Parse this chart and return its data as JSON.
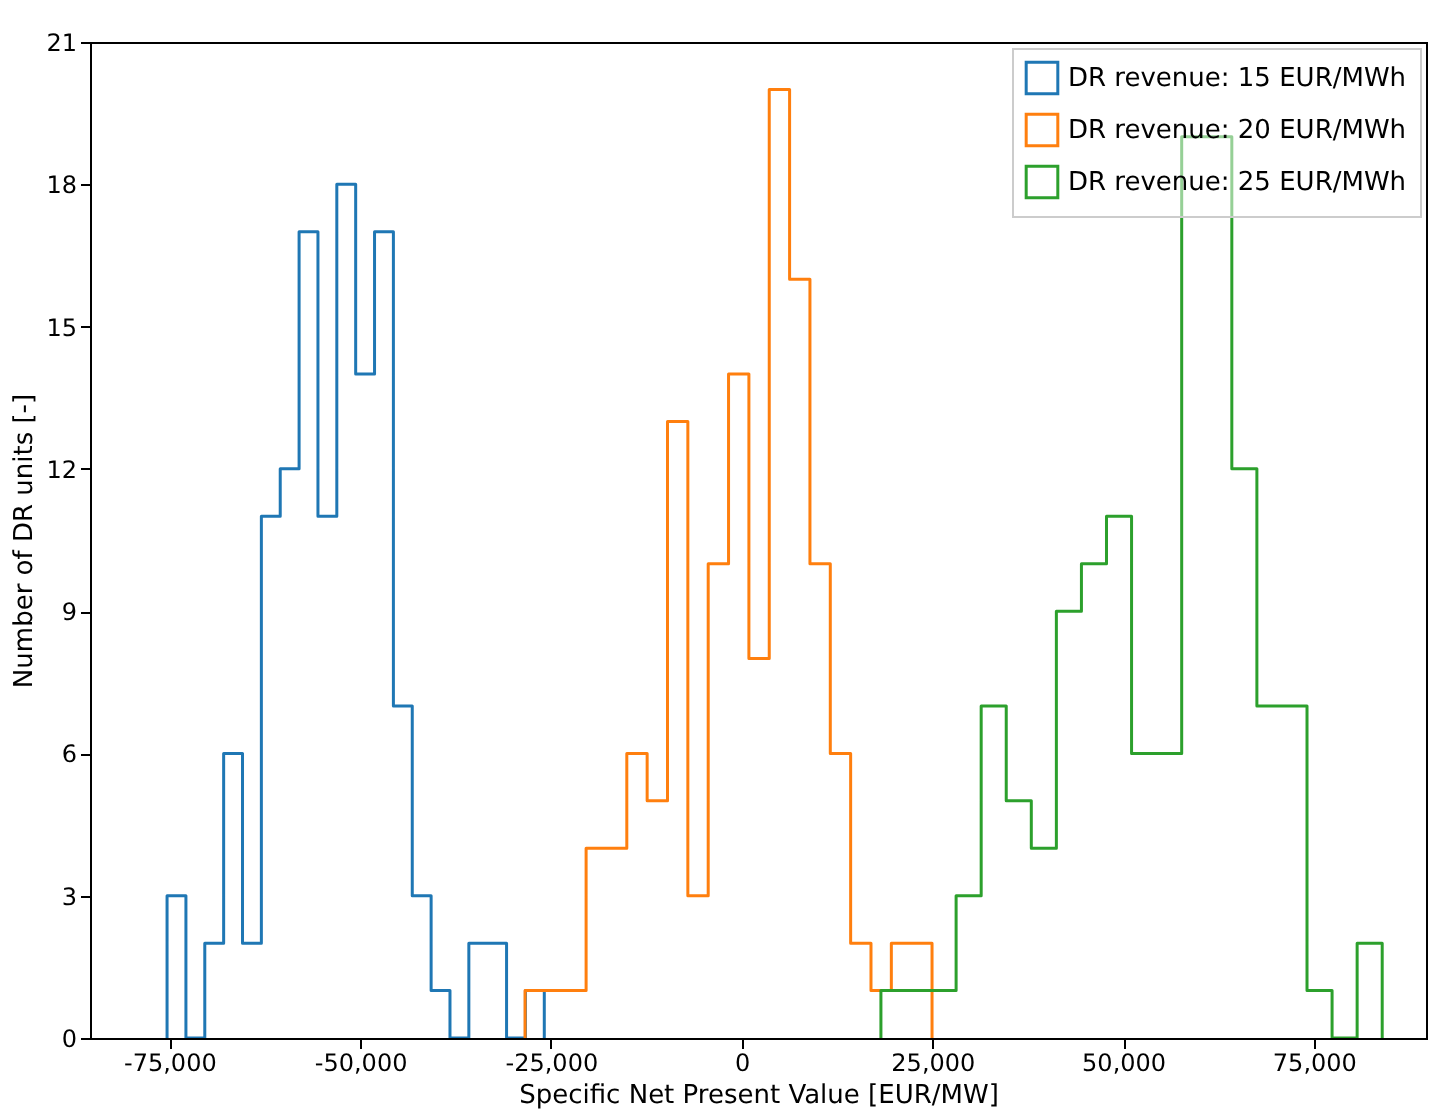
{
  "chart_data": {
    "type": "step",
    "xlabel": "Specific Net Present Value [EUR/MW]",
    "ylabel": "Number of DR units [-]",
    "xlim": [
      -85400,
      89700
    ],
    "ylim": [
      0,
      21
    ],
    "xticks": [
      {
        "value": -75000,
        "label": "-75,000"
      },
      {
        "value": -50000,
        "label": "-50,000"
      },
      {
        "value": -25000,
        "label": "-25,000"
      },
      0,
      {
        "value": 25000,
        "label": "25,000"
      },
      {
        "value": 50000,
        "label": "50,000"
      },
      {
        "value": 75000,
        "label": "75,000"
      }
    ],
    "yticks": [
      0,
      3,
      6,
      9,
      12,
      15,
      18,
      21
    ],
    "grid": false,
    "legend": "top right",
    "series": [
      {
        "name": "DR revenue: 15 EUR/MWh",
        "color": "#1f77b4",
        "x": [
          -75300,
          -75300,
          -72828,
          -70356,
          -67884,
          -65412,
          -62940,
          -60468,
          -57996,
          -55524,
          -53052,
          -50580,
          -48108,
          -45636,
          -43164,
          -40692,
          -38220,
          -35748,
          -33276,
          -30804,
          -28332,
          -25860
        ],
        "values": [
          0,
          3,
          0,
          2,
          6,
          2,
          11,
          12,
          17,
          11,
          18,
          14,
          17,
          7,
          3,
          1,
          0,
          2,
          2,
          0,
          1,
          0
        ]
      },
      {
        "name": "DR revenue: 20 EUR/MWh",
        "color": "#ff7f0e",
        "x": [
          -28380,
          -28380,
          -25713,
          -23046,
          -20379,
          -17712,
          -15045,
          -12378,
          -9711,
          -7044,
          -4377,
          -1710,
          957,
          3624,
          6291,
          8958,
          11625,
          14292,
          16959,
          19626,
          22293,
          24960
        ],
        "values": [
          0,
          1,
          1,
          1,
          4,
          4,
          6,
          5,
          13,
          3,
          10,
          14,
          8,
          20,
          16,
          10,
          6,
          2,
          1,
          2,
          2,
          0
        ]
      },
      {
        "name": "DR revenue: 25 EUR/MWh",
        "color": "#2ca02c",
        "x": [
          18260,
          18260,
          21545,
          24830,
          28115,
          31400,
          34685,
          37970,
          41255,
          44540,
          47825,
          51110,
          54395,
          57680,
          60965,
          64250,
          67535,
          70820,
          74105,
          77390,
          80675,
          83960
        ],
        "values": [
          0,
          1,
          1,
          1,
          3,
          7,
          5,
          4,
          9,
          10,
          11,
          6,
          6,
          19,
          19,
          12,
          7,
          7,
          1,
          0,
          2,
          0
        ]
      }
    ]
  }
}
